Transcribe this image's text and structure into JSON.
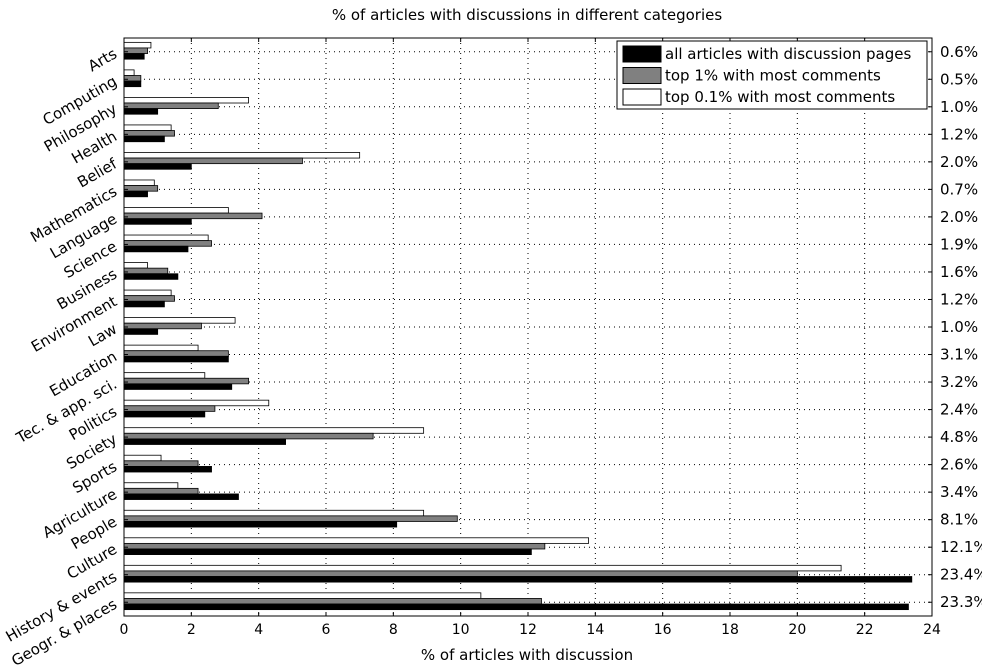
{
  "chart_data": {
    "type": "bar",
    "orientation": "horizontal",
    "title": "% of articles with discussions in different categories",
    "xlabel": "% of articles with discussion",
    "ylabel": "",
    "xlim": [
      0,
      24
    ],
    "xticks": [
      0,
      2,
      4,
      6,
      8,
      10,
      12,
      14,
      16,
      18,
      20,
      22,
      24
    ],
    "grid": true,
    "legend_position": "top-right",
    "categories": [
      "Arts",
      "Computing",
      "Philosophy",
      "Health",
      "Belief",
      "Mathematics",
      "Language",
      "Science",
      "Business",
      "Environment",
      "Law",
      "Education",
      "Tec. & app. sci.",
      "Politics",
      "Society",
      "Sports",
      "Agriculture",
      "People",
      "Culture",
      "History & events",
      "Geogr. & places"
    ],
    "right_labels": [
      "0.6%",
      "0.5%",
      "1.0%",
      "1.2%",
      "2.0%",
      "0.7%",
      "2.0%",
      "1.9%",
      "1.6%",
      "1.2%",
      "1.0%",
      "3.1%",
      "3.2%",
      "2.4%",
      "4.8%",
      "2.6%",
      "3.4%",
      "8.1%",
      "12.1%",
      "23.4%",
      "23.3%"
    ],
    "series": [
      {
        "name": "all articles with discussion pages",
        "color": "#000000",
        "values": [
          0.6,
          0.5,
          1.0,
          1.2,
          2.0,
          0.7,
          2.0,
          1.9,
          1.6,
          1.2,
          1.0,
          3.1,
          3.2,
          2.4,
          4.8,
          2.6,
          3.4,
          8.1,
          12.1,
          23.4,
          23.3
        ]
      },
      {
        "name": "top 1% with most comments",
        "color": "#808080",
        "values": [
          0.7,
          0.5,
          2.8,
          1.5,
          5.3,
          1.0,
          4.1,
          2.6,
          1.3,
          1.5,
          2.3,
          3.1,
          3.7,
          2.7,
          7.4,
          2.2,
          2.2,
          9.9,
          12.5,
          20.0,
          12.4
        ]
      },
      {
        "name": "top 0.1% with most comments",
        "color": "#ffffff",
        "values": [
          0.8,
          0.3,
          3.7,
          1.4,
          7.0,
          0.9,
          3.1,
          2.5,
          0.7,
          1.4,
          3.3,
          2.2,
          2.4,
          4.3,
          8.9,
          1.1,
          1.6,
          8.9,
          13.8,
          21.3,
          10.6
        ]
      }
    ]
  }
}
